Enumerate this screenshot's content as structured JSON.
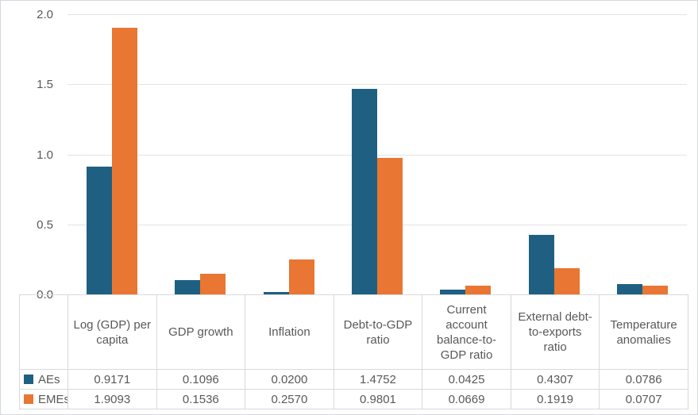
{
  "chart_data": {
    "type": "bar",
    "title": "",
    "xlabel": "",
    "ylabel": "",
    "categories": [
      "Log (GDP) per capita",
      "GDP growth",
      "Inflation",
      "Debt-to-GDP ratio",
      "Current account balance-to-GDP ratio",
      "External debt-to-exports ratio",
      "Temperature anomalies"
    ],
    "series": [
      {
        "name": "AEs",
        "color": "#1F6082",
        "values": [
          0.9171,
          0.1096,
          0.02,
          1.4752,
          0.0425,
          0.4307,
          0.0786
        ]
      },
      {
        "name": "EMEs",
        "color": "#E97632",
        "values": [
          1.9093,
          0.1536,
          0.257,
          0.9801,
          0.0669,
          0.1919,
          0.0707
        ]
      }
    ],
    "ylim": [
      0,
      2.0
    ],
    "yticks": [
      0.0,
      0.5,
      1.0,
      1.5,
      2.0
    ],
    "tick_decimals": 1,
    "value_decimals": 4,
    "grid": true,
    "legend_position": "data-table-left-column"
  },
  "colors": {
    "gridline": "#E4E4E4",
    "table_border": "#D9D9D9",
    "text": "#595959",
    "frame_border": "#D5D9DE",
    "background": "#FFFFFF"
  }
}
